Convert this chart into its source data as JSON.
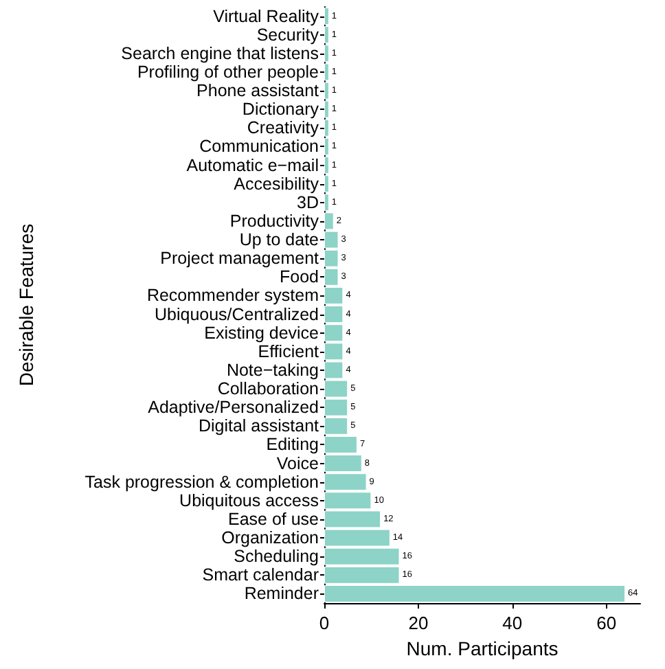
{
  "chart_data": {
    "type": "bar",
    "orientation": "horizontal",
    "xlabel": "Num. Participants",
    "ylabel": "Desirable Features",
    "categories": [
      "Virtual Reality",
      "Security",
      "Search engine that listens",
      "Profiling of other people",
      "Phone assistant",
      "Dictionary",
      "Creativity",
      "Communication",
      "Automatic e−mail",
      "Accesibility",
      "3D",
      "Productivity",
      "Up to date",
      "Project management",
      "Food",
      "Recommender system",
      "Ubiquous/Centralized",
      "Existing device",
      "Efficient",
      "Note−taking",
      "Collaboration",
      "Adaptive/Personalized",
      "Digital assistant",
      "Editing",
      "Voice",
      "Task progression & completion",
      "Ubiquitous access",
      "Ease of use",
      "Organization",
      "Scheduling",
      "Smart calendar",
      "Reminder"
    ],
    "values": [
      1,
      1,
      1,
      1,
      1,
      1,
      1,
      1,
      1,
      1,
      1,
      2,
      3,
      3,
      3,
      4,
      4,
      4,
      4,
      4,
      5,
      5,
      5,
      7,
      8,
      9,
      10,
      12,
      14,
      16,
      16,
      64
    ],
    "color": "#8dd3c7",
    "xlim": [
      0,
      67.2
    ],
    "xticks": [
      0,
      20,
      40,
      60
    ],
    "data_labels": true
  }
}
